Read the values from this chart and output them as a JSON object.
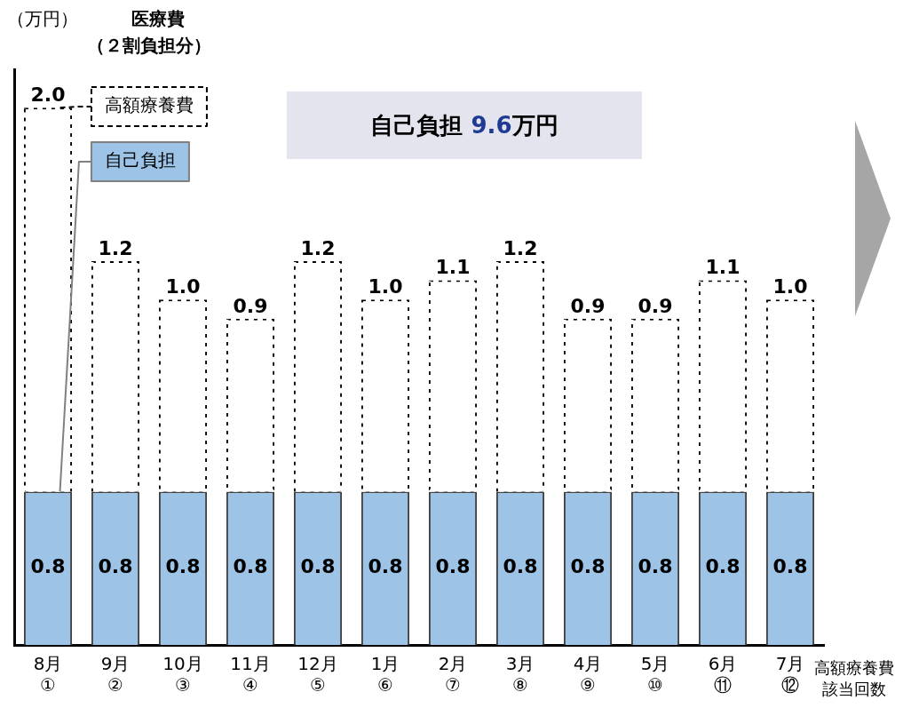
{
  "chart_data": {
    "type": "bar",
    "stacked": true,
    "data_labels": true,
    "legend": "top left",
    "xlabel": "高額療養費該当回数",
    "annotations": [
      "（万円）",
      "医療費",
      "（２割負担分）",
      "自己負担 9.6万円"
    ],
    "categories": [
      "8月\n①",
      "9月\n②",
      "10月\n③",
      "11月\n④",
      "12月\n⑤",
      "1月\n⑥",
      "2月\n⑦",
      "3月\n⑧",
      "4月\n⑨",
      "5月\n⑩",
      "6月\n⑪",
      "7月\n⑫"
    ],
    "series": [
      {
        "name": "自己負担",
        "color": "#9dc3e6",
        "values": [
          0.8,
          0.8,
          0.8,
          0.8,
          0.8,
          0.8,
          0.8,
          0.8,
          0.8,
          0.8,
          0.8,
          0.8
        ]
      },
      {
        "name": "高額療養費",
        "color": "#ffffff",
        "line_style": "dashed",
        "values": [
          2.0,
          1.2,
          1.0,
          0.9,
          1.2,
          1.0,
          1.1,
          1.2,
          0.9,
          0.9,
          1.1,
          1.0
        ],
        "value_labels": [
          "2.0",
          "1.2",
          "1.0",
          "0.9",
          "1.2",
          "1.0",
          "1.1",
          "1.2",
          "0.9",
          "0.9",
          "1.1",
          "1.0"
        ]
      }
    ]
  }
}
